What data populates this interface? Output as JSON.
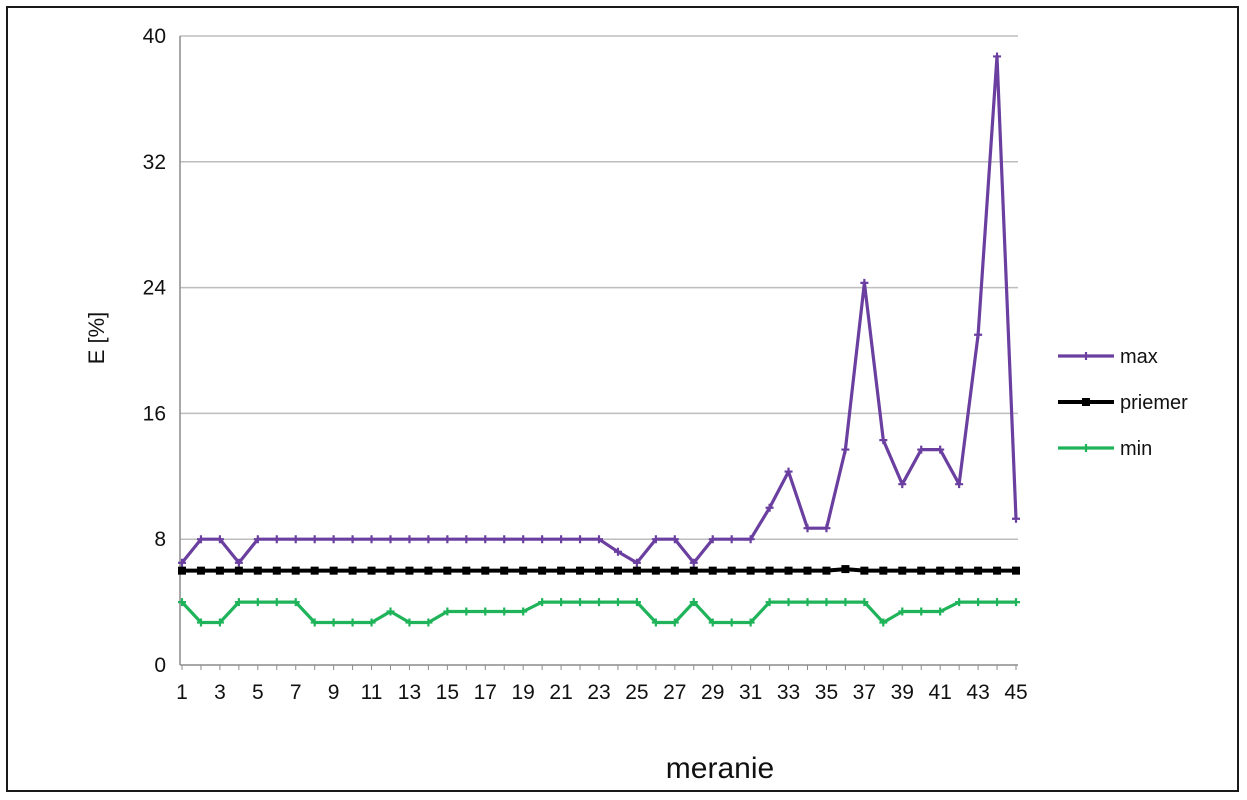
{
  "chart_data": {
    "type": "line",
    "title": "",
    "xlabel": "meranie",
    "ylabel": "E  [%]",
    "ylim": [
      0,
      40
    ],
    "y_ticks": [
      "0",
      "8",
      "16",
      "24",
      "32",
      "40"
    ],
    "x_tick_labels": [
      "1",
      "3",
      "5",
      "7",
      "9",
      "11",
      "13",
      "15",
      "17",
      "19",
      "21",
      "23",
      "25",
      "27",
      "29",
      "31",
      "33",
      "35",
      "37",
      "39",
      "41",
      "43",
      "45"
    ],
    "x": [
      1,
      2,
      3,
      4,
      5,
      6,
      7,
      8,
      9,
      10,
      11,
      12,
      13,
      14,
      15,
      16,
      17,
      18,
      19,
      20,
      21,
      22,
      23,
      24,
      25,
      26,
      27,
      28,
      29,
      30,
      31,
      32,
      33,
      34,
      35,
      36,
      37,
      38,
      39,
      40,
      41,
      42,
      43,
      44,
      45
    ],
    "grid": "horizontal",
    "legend_position": "right",
    "series": [
      {
        "name": "max",
        "color": "#6a3fa0",
        "marker": "plus",
        "values": [
          6.5,
          8,
          8,
          6.5,
          8,
          8,
          8,
          8,
          8,
          8,
          8,
          8,
          8,
          8,
          8,
          8,
          8,
          8,
          8,
          8,
          8,
          8,
          8,
          7.2,
          6.5,
          8,
          8,
          6.5,
          8,
          8,
          8,
          10,
          12.3,
          8.7,
          8.7,
          13.7,
          24.3,
          14.3,
          11.5,
          13.7,
          13.7,
          11.5,
          21,
          38.7,
          9.3
        ]
      },
      {
        "name": "priemer",
        "color": "#000000",
        "marker": "square",
        "values": [
          6,
          6,
          6,
          6,
          6,
          6,
          6,
          6,
          6,
          6,
          6,
          6,
          6,
          6,
          6,
          6,
          6,
          6,
          6,
          6,
          6,
          6,
          6,
          6,
          6,
          6,
          6,
          6,
          6,
          6,
          6,
          6,
          6,
          6,
          6,
          6.1,
          6,
          6,
          6,
          6,
          6,
          6,
          6,
          6,
          6
        ]
      },
      {
        "name": "min",
        "color": "#1fb35a",
        "marker": "plus",
        "values": [
          4,
          2.7,
          2.7,
          4,
          4,
          4,
          4,
          2.7,
          2.7,
          2.7,
          2.7,
          3.4,
          2.7,
          2.7,
          3.4,
          3.4,
          3.4,
          3.4,
          3.4,
          4,
          4,
          4,
          4,
          4,
          4,
          2.7,
          2.7,
          4,
          2.7,
          2.7,
          2.7,
          4,
          4,
          4,
          4,
          4,
          4,
          2.7,
          3.4,
          3.4,
          3.4,
          4,
          4,
          4,
          4
        ]
      }
    ]
  }
}
